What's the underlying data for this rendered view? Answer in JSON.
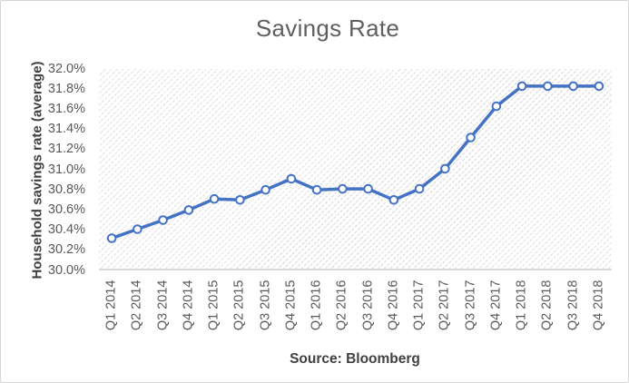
{
  "chart_data": {
    "type": "line",
    "title": "Savings Rate",
    "ylabel": "Household savings rate (average)",
    "xlabel": "",
    "source_note": "Source: Bloomberg",
    "categories": [
      "Q1 2014",
      "Q2 2014",
      "Q3 2014",
      "Q4 2014",
      "Q1 2015",
      "Q2 2015",
      "Q3 2015",
      "Q4 2015",
      "Q1 2016",
      "Q2 2016",
      "Q3 2016",
      "Q4 2016",
      "Q1 2017",
      "Q2 2017",
      "Q3 2017",
      "Q4 2017",
      "Q1 2018",
      "Q2 2018",
      "Q3 2018",
      "Q4 2018"
    ],
    "series": [
      {
        "name": "Household savings rate (average)",
        "values": [
          30.32,
          30.41,
          30.5,
          30.6,
          30.71,
          30.7,
          30.8,
          30.91,
          30.8,
          30.81,
          30.81,
          30.7,
          30.81,
          31.01,
          31.32,
          31.63,
          31.83,
          31.83,
          31.83,
          31.83
        ]
      }
    ],
    "ylim": [
      30.0,
      32.0
    ],
    "y_tick_step": 0.2,
    "y_tick_suffix": "%",
    "y_tick_labels": [
      "32.0%",
      "31.8%",
      "31.6%",
      "31.4%",
      "31.2%",
      "31.0%",
      "30.8%",
      "30.6%",
      "30.4%",
      "30.2%",
      "30.0%"
    ],
    "grid": false,
    "legend": "none",
    "plot_area_fill": "light-diagonal-hatch",
    "marker_style": "circle-white-fill-blue-ring",
    "colors": {
      "line": "#4472C4",
      "marker_fill": "#FFFFFF",
      "title_text": "#5F5F5F",
      "tick_text": "#595959",
      "axis_title_text": "#404040",
      "axis_line": "#D9D9D9",
      "hatch_line": "#E1E1E1",
      "chart_border": "#D6D6D6"
    }
  }
}
